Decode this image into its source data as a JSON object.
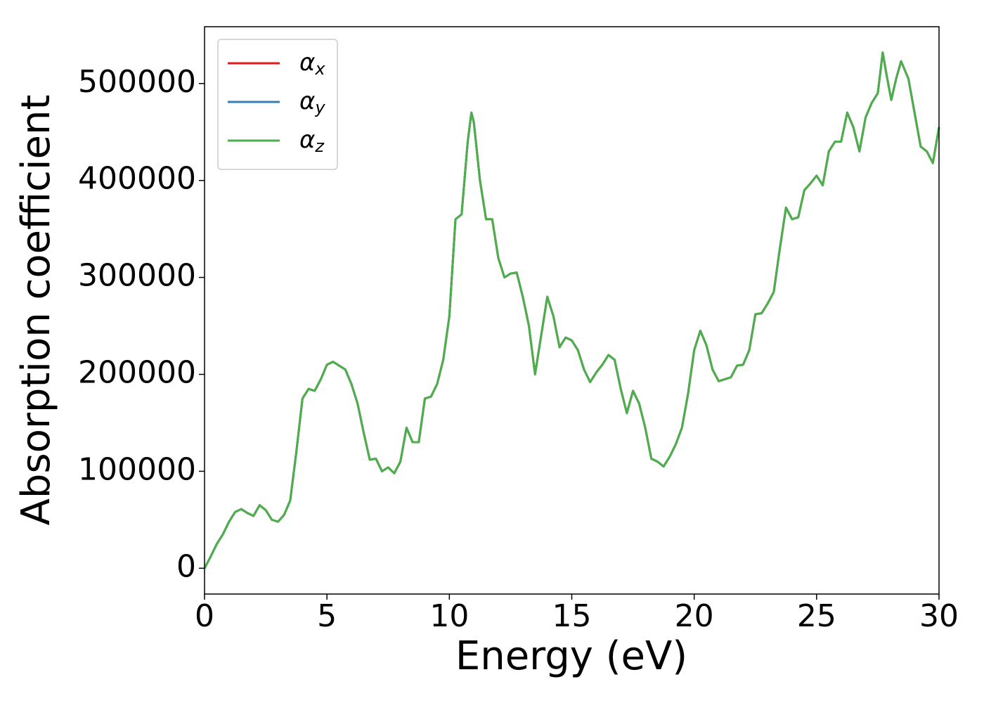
{
  "chart_data": {
    "type": "line",
    "xlabel": "Energy (eV)",
    "ylabel": "Absorption coefficient",
    "x": [
      0,
      0.25,
      0.5,
      0.75,
      1.0,
      1.25,
      1.5,
      1.75,
      2.0,
      2.25,
      2.5,
      2.75,
      3.0,
      3.25,
      3.5,
      3.75,
      4.0,
      4.25,
      4.5,
      4.75,
      5.0,
      5.25,
      5.5,
      5.75,
      6.0,
      6.25,
      6.5,
      6.75,
      7.0,
      7.25,
      7.5,
      7.75,
      8.0,
      8.25,
      8.5,
      8.75,
      9.0,
      9.25,
      9.5,
      9.75,
      10.0,
      10.25,
      10.5,
      10.75,
      10.9,
      11.0,
      11.25,
      11.5,
      11.75,
      12.0,
      12.25,
      12.5,
      12.75,
      13.0,
      13.25,
      13.5,
      13.75,
      14.0,
      14.25,
      14.5,
      14.75,
      15.0,
      15.25,
      15.5,
      15.75,
      16.0,
      16.25,
      16.5,
      16.75,
      17.0,
      17.25,
      17.5,
      17.75,
      18.0,
      18.25,
      18.5,
      18.75,
      19.0,
      19.25,
      19.5,
      19.75,
      20.0,
      20.25,
      20.5,
      20.75,
      21.0,
      21.25,
      21.5,
      21.75,
      22.0,
      22.25,
      22.5,
      22.75,
      23.0,
      23.25,
      23.5,
      23.75,
      24.0,
      24.25,
      24.5,
      24.75,
      25.0,
      25.25,
      25.5,
      25.75,
      26.0,
      26.25,
      26.5,
      26.75,
      27.0,
      27.25,
      27.5,
      27.7,
      27.85,
      28.05,
      28.25,
      28.45,
      28.75,
      29.0,
      29.25,
      29.5,
      29.75,
      30.0
    ],
    "series": [
      {
        "name": "αx",
        "color": "#e41a1c",
        "values": [
          0,
          12000,
          25000,
          35000,
          48000,
          58000,
          61000,
          57000,
          54000,
          65000,
          60000,
          50000,
          48000,
          55000,
          70000,
          120000,
          175000,
          185000,
          183000,
          195000,
          210000,
          213000,
          209000,
          205000,
          190000,
          170000,
          140000,
          112000,
          113000,
          100000,
          104000,
          98000,
          110000,
          145000,
          130000,
          130000,
          175000,
          177000,
          190000,
          215000,
          260000,
          360000,
          365000,
          440000,
          470000,
          460000,
          400000,
          360000,
          360000,
          320000,
          300000,
          304000,
          305000,
          280000,
          250000,
          200000,
          240000,
          280000,
          260000,
          228000,
          238000,
          235000,
          225000,
          205000,
          192000,
          202000,
          210000,
          220000,
          215000,
          185000,
          160000,
          183000,
          170000,
          145000,
          113000,
          110000,
          105000,
          115000,
          128000,
          145000,
          180000,
          225000,
          245000,
          230000,
          205000,
          193000,
          195000,
          197000,
          209000,
          210000,
          225000,
          262000,
          263000,
          273000,
          285000,
          330000,
          372000,
          360000,
          362000,
          390000,
          397000,
          405000,
          395000,
          430000,
          440000,
          440000,
          470000,
          455000,
          430000,
          465000,
          480000,
          490000,
          532000,
          510000,
          483000,
          505000,
          523000,
          505000,
          470000,
          435000,
          430000,
          418000,
          455000
        ]
      },
      {
        "name": "αy",
        "color": "#377eb8",
        "values": [
          0,
          12000,
          25000,
          35000,
          48000,
          58000,
          61000,
          57000,
          54000,
          65000,
          60000,
          50000,
          48000,
          55000,
          70000,
          120000,
          175000,
          185000,
          183000,
          195000,
          210000,
          213000,
          209000,
          205000,
          190000,
          170000,
          140000,
          112000,
          113000,
          100000,
          104000,
          98000,
          110000,
          145000,
          130000,
          130000,
          175000,
          177000,
          190000,
          215000,
          260000,
          360000,
          365000,
          440000,
          470000,
          460000,
          400000,
          360000,
          360000,
          320000,
          300000,
          304000,
          305000,
          280000,
          250000,
          200000,
          240000,
          280000,
          260000,
          228000,
          238000,
          235000,
          225000,
          205000,
          192000,
          202000,
          210000,
          220000,
          215000,
          185000,
          160000,
          183000,
          170000,
          145000,
          113000,
          110000,
          105000,
          115000,
          128000,
          145000,
          180000,
          225000,
          245000,
          230000,
          205000,
          193000,
          195000,
          197000,
          209000,
          210000,
          225000,
          262000,
          263000,
          273000,
          285000,
          330000,
          372000,
          360000,
          362000,
          390000,
          397000,
          405000,
          395000,
          430000,
          440000,
          440000,
          470000,
          455000,
          430000,
          465000,
          480000,
          490000,
          532000,
          510000,
          483000,
          505000,
          523000,
          505000,
          470000,
          435000,
          430000,
          418000,
          455000
        ]
      },
      {
        "name": "αz",
        "color": "#4daf4a",
        "values": [
          0,
          12000,
          25000,
          35000,
          48000,
          58000,
          61000,
          57000,
          54000,
          65000,
          60000,
          50000,
          48000,
          55000,
          70000,
          120000,
          175000,
          185000,
          183000,
          195000,
          210000,
          213000,
          209000,
          205000,
          190000,
          170000,
          140000,
          112000,
          113000,
          100000,
          104000,
          98000,
          110000,
          145000,
          130000,
          130000,
          175000,
          177000,
          190000,
          215000,
          260000,
          360000,
          365000,
          440000,
          470000,
          460000,
          400000,
          360000,
          360000,
          320000,
          300000,
          304000,
          305000,
          280000,
          250000,
          200000,
          240000,
          280000,
          260000,
          228000,
          238000,
          235000,
          225000,
          205000,
          192000,
          202000,
          210000,
          220000,
          215000,
          185000,
          160000,
          183000,
          170000,
          145000,
          113000,
          110000,
          105000,
          115000,
          128000,
          145000,
          180000,
          225000,
          245000,
          230000,
          205000,
          193000,
          195000,
          197000,
          209000,
          210000,
          225000,
          262000,
          263000,
          273000,
          285000,
          330000,
          372000,
          360000,
          362000,
          390000,
          397000,
          405000,
          395000,
          430000,
          440000,
          440000,
          470000,
          455000,
          430000,
          465000,
          480000,
          490000,
          532000,
          510000,
          483000,
          505000,
          523000,
          505000,
          470000,
          435000,
          430000,
          418000,
          455000
        ]
      }
    ],
    "xlim": [
      0,
      30
    ],
    "xticks": [
      0,
      5,
      10,
      15,
      20,
      25,
      30
    ],
    "ylim": [
      -26600,
      558600
    ],
    "yticks": [
      0,
      100000,
      200000,
      300000,
      400000,
      500000
    ],
    "grid": false,
    "legend": "upper left"
  }
}
